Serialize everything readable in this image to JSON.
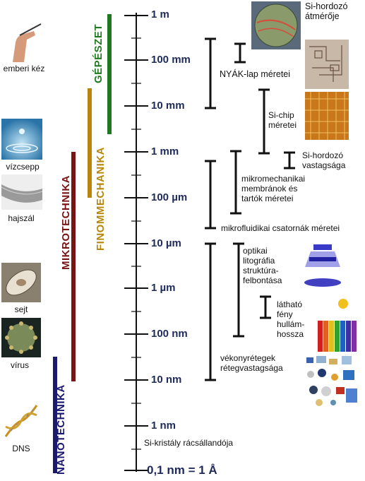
{
  "scale": {
    "ticks": [
      {
        "label": "1 m"
      },
      {
        "label": "100 mm"
      },
      {
        "label": "10 mm"
      },
      {
        "label": "1 mm"
      },
      {
        "label": "100 µm"
      },
      {
        "label": "10 µm"
      },
      {
        "label": "1 µm"
      },
      {
        "label": "100 nm"
      },
      {
        "label": "10 nm"
      },
      {
        "label": "1 nm"
      },
      {
        "label": "0,1 nm = 1 Å"
      }
    ]
  },
  "left_items": {
    "hand": "emberi kéz",
    "droplet": "vízcsepp",
    "hair": "hajszál",
    "cell": "sejt",
    "virus": "vírus",
    "dna": "DNS"
  },
  "fields": {
    "nanotech": {
      "label": "NANOTECHNIKA",
      "color": "#1a1a6e"
    },
    "microtech": {
      "label": "MIKROTECHNIKA",
      "color": "#7a1414"
    },
    "finemech": {
      "label": "FINOMMECHANIKA",
      "color": "#b8860b"
    },
    "mech": {
      "label": "GÉPÉSZET",
      "color": "#1f7a1f"
    }
  },
  "ranges": {
    "wafer_diameter": "Si-hordozó átmérője",
    "pcb": "NYÁK-lap méretei",
    "chip": "Si-chip méretei",
    "wafer_thickness": "Si-hordozó vastagsága",
    "micromech": "mikromechanikai membránok és tartók méretei",
    "microfluidic": "mikrofluidikai csatornák méretei",
    "litho": "optikai litográfia struktúra-felbontása",
    "light": "látható fény hullám-hossza",
    "thinfilm": "vékonyrétegek rétegvastagsága",
    "lattice": "Si-kristály rácsállandója"
  }
}
